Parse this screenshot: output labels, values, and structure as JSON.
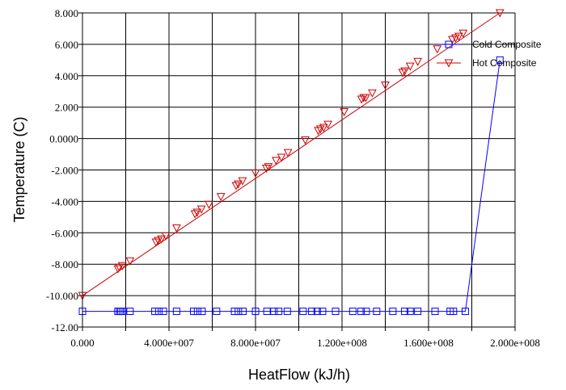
{
  "chart_data": {
    "type": "line",
    "xlabel": "HeatFlow (kJ/h)",
    "ylabel": "Temperature (C)",
    "xlim": [
      0,
      200000000
    ],
    "ylim": [
      -12,
      8
    ],
    "grid": true,
    "legend_position": "top-right",
    "x_tick_labels": [
      "0.000",
      "4.000e+007",
      "8.000e+007",
      "1.200e+008",
      "1.600e+008",
      "2.000e+008"
    ],
    "x_tick_values": [
      0,
      40000000,
      80000000,
      120000000,
      160000000,
      200000000
    ],
    "y_tick_labels": [
      "-12.00",
      "-10.000",
      "-8.000",
      "-6.000",
      "-4.000",
      "-2.000",
      "0.0000",
      "2.000",
      "4.000",
      "6.000",
      "8.000"
    ],
    "y_tick_values": [
      -12,
      -10,
      -8,
      -6,
      -4,
      -2,
      0,
      2,
      4,
      6,
      8
    ],
    "series": [
      {
        "name": "Cold Composite",
        "color": "#0000ff",
        "marker": "square",
        "line_points": [
          [
            0,
            -11.0
          ],
          [
            177000000,
            -11.0
          ],
          [
            193000000,
            5.0
          ]
        ],
        "markers": [
          [
            0,
            -11.0
          ],
          [
            16400000,
            -11.0
          ],
          [
            17200000,
            -11.0
          ],
          [
            17800000,
            -11.0
          ],
          [
            18600000,
            -11.0
          ],
          [
            22000000,
            -11.0
          ],
          [
            33500000,
            -11.0
          ],
          [
            35300000,
            -11.0
          ],
          [
            37400000,
            -11.0
          ],
          [
            43500000,
            -11.0
          ],
          [
            51400000,
            -11.0
          ],
          [
            53200000,
            -11.0
          ],
          [
            55300000,
            -11.0
          ],
          [
            62000000,
            -11.0
          ],
          [
            70300000,
            -11.0
          ],
          [
            72100000,
            -11.0
          ],
          [
            74200000,
            -11.0
          ],
          [
            80000000,
            -11.0
          ],
          [
            85300000,
            -11.0
          ],
          [
            88500000,
            -11.0
          ],
          [
            90700000,
            -11.0
          ],
          [
            94700000,
            -11.0
          ],
          [
            102000000,
            -11.0
          ],
          [
            106000000,
            -11.0
          ],
          [
            108500000,
            -11.0
          ],
          [
            111000000,
            -11.0
          ],
          [
            117000000,
            -11.0
          ],
          [
            125000000,
            -11.0
          ],
          [
            128800000,
            -11.0
          ],
          [
            131200000,
            -11.0
          ],
          [
            136000000,
            -11.0
          ],
          [
            143500000,
            -11.0
          ],
          [
            149000000,
            -11.0
          ],
          [
            151500000,
            -11.0
          ],
          [
            155000000,
            -11.0
          ],
          [
            163000000,
            -11.0
          ],
          [
            170000000,
            -11.0
          ],
          [
            171500000,
            -11.0
          ],
          [
            177000000,
            -11.0
          ],
          [
            193000000,
            5.0
          ]
        ]
      },
      {
        "name": "Hot Composite",
        "color": "#cc0000",
        "marker": "triangle-down",
        "line_points": [
          [
            0,
            -10.0
          ],
          [
            193000000,
            8.0
          ]
        ],
        "markers": [
          [
            0,
            -10.0
          ],
          [
            16400000,
            -8.3
          ],
          [
            17000000,
            -8.2
          ],
          [
            18400000,
            -8.1
          ],
          [
            22000000,
            -7.8
          ],
          [
            34000000,
            -6.6
          ],
          [
            35000000,
            -6.5
          ],
          [
            36500000,
            -6.4
          ],
          [
            38500000,
            -6.2
          ],
          [
            43500000,
            -5.7
          ],
          [
            52000000,
            -4.8
          ],
          [
            53000000,
            -4.7
          ],
          [
            55000000,
            -4.5
          ],
          [
            58500000,
            -4.2
          ],
          [
            64000000,
            -3.7
          ],
          [
            71000000,
            -3.0
          ],
          [
            72000000,
            -2.9
          ],
          [
            74000000,
            -2.7
          ],
          [
            80000000,
            -2.2
          ],
          [
            85000000,
            -1.9
          ],
          [
            86000000,
            -1.8
          ],
          [
            89500000,
            -1.4
          ],
          [
            92000000,
            -1.2
          ],
          [
            95000000,
            -0.9
          ],
          [
            103000000,
            -0.1
          ],
          [
            109000000,
            0.5
          ],
          [
            110000000,
            0.6
          ],
          [
            111500000,
            0.7
          ],
          [
            113500000,
            0.9
          ],
          [
            121000000,
            1.7
          ],
          [
            129000000,
            2.5
          ],
          [
            130000000,
            2.6
          ],
          [
            131000000,
            2.6
          ],
          [
            134000000,
            2.9
          ],
          [
            140000000,
            3.4
          ],
          [
            148000000,
            4.2
          ],
          [
            149000000,
            4.3
          ],
          [
            151500000,
            4.6
          ],
          [
            155000000,
            4.9
          ],
          [
            164000000,
            5.7
          ],
          [
            171000000,
            6.3
          ],
          [
            172500000,
            6.4
          ],
          [
            174000000,
            6.5
          ],
          [
            176000000,
            6.7
          ],
          [
            193000000,
            8.0
          ]
        ]
      }
    ]
  }
}
